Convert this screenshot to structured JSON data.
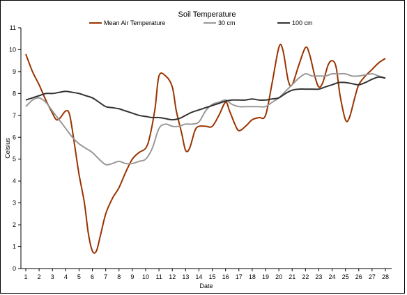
{
  "chart_data": {
    "type": "line",
    "title": "Soil Temperature",
    "xlabel": "Date",
    "ylabel": "Celsius",
    "x": [
      1,
      2,
      3,
      4,
      5,
      6,
      7,
      8,
      9,
      10,
      11,
      12,
      13,
      14,
      15,
      16,
      17,
      18,
      19,
      20,
      21,
      22,
      23,
      24,
      25,
      26,
      27,
      28
    ],
    "xlim": [
      1,
      28
    ],
    "ylim": [
      0,
      11
    ],
    "yticks": [
      0,
      1,
      2,
      3,
      4,
      5,
      6,
      7,
      8,
      9,
      10,
      11
    ],
    "grid": false,
    "legend_position": "top",
    "series": [
      {
        "name": "Mean Air Temperature",
        "color": "#993300",
        "points": [
          [
            1,
            9.8
          ],
          [
            1.5,
            9.0
          ],
          [
            2,
            8.4
          ],
          [
            2.5,
            7.7
          ],
          [
            3,
            7.1
          ],
          [
            3.3,
            6.8
          ],
          [
            3.6,
            6.9
          ],
          [
            4,
            7.2
          ],
          [
            4.3,
            7.0
          ],
          [
            4.7,
            5.5
          ],
          [
            5,
            4.3
          ],
          [
            5.4,
            3.0
          ],
          [
            5.7,
            1.6
          ],
          [
            6,
            0.8
          ],
          [
            6.3,
            0.8
          ],
          [
            6.6,
            1.5
          ],
          [
            7,
            2.5
          ],
          [
            7.5,
            3.2
          ],
          [
            8,
            3.7
          ],
          [
            8.5,
            4.4
          ],
          [
            9,
            5.0
          ],
          [
            9.5,
            5.3
          ],
          [
            10,
            5.5
          ],
          [
            10.3,
            6.0
          ],
          [
            10.7,
            7.3
          ],
          [
            11,
            8.8
          ],
          [
            11.5,
            8.8
          ],
          [
            12,
            8.3
          ],
          [
            12.3,
            7.2
          ],
          [
            12.7,
            6.2
          ],
          [
            13,
            5.4
          ],
          [
            13.3,
            5.5
          ],
          [
            13.7,
            6.3
          ],
          [
            14,
            6.5
          ],
          [
            14.5,
            6.5
          ],
          [
            15,
            6.5
          ],
          [
            15.5,
            7.0
          ],
          [
            16,
            7.6
          ],
          [
            16.3,
            7.2
          ],
          [
            16.7,
            6.6
          ],
          [
            17,
            6.3
          ],
          [
            17.5,
            6.5
          ],
          [
            18,
            6.8
          ],
          [
            18.5,
            6.9
          ],
          [
            19,
            7.0
          ],
          [
            19.5,
            8.5
          ],
          [
            20,
            10.1
          ],
          [
            20.3,
            10.0
          ],
          [
            20.7,
            8.6
          ],
          [
            21,
            8.4
          ],
          [
            21.5,
            9.3
          ],
          [
            22,
            10.1
          ],
          [
            22.3,
            9.8
          ],
          [
            22.7,
            8.8
          ],
          [
            23,
            8.3
          ],
          [
            23.3,
            8.5
          ],
          [
            23.7,
            9.3
          ],
          [
            24,
            9.5
          ],
          [
            24.3,
            9.2
          ],
          [
            24.6,
            7.9
          ],
          [
            25,
            6.8
          ],
          [
            25.3,
            6.9
          ],
          [
            25.7,
            7.8
          ],
          [
            26,
            8.4
          ],
          [
            26.5,
            8.8
          ],
          [
            27,
            9.1
          ],
          [
            27.5,
            9.4
          ],
          [
            28,
            9.6
          ]
        ]
      },
      {
        "name": "30 cm",
        "color": "#999999",
        "points": [
          [
            1,
            7.4
          ],
          [
            1.5,
            7.7
          ],
          [
            2,
            7.8
          ],
          [
            2.5,
            7.6
          ],
          [
            3,
            7.2
          ],
          [
            3.5,
            6.8
          ],
          [
            4,
            6.4
          ],
          [
            4.5,
            6.0
          ],
          [
            5,
            5.7
          ],
          [
            5.5,
            5.5
          ],
          [
            6,
            5.3
          ],
          [
            6.5,
            5.0
          ],
          [
            7,
            4.75
          ],
          [
            7.5,
            4.8
          ],
          [
            8,
            4.9
          ],
          [
            8.5,
            4.8
          ],
          [
            9,
            4.8
          ],
          [
            9.5,
            4.9
          ],
          [
            10,
            5.0
          ],
          [
            10.5,
            5.5
          ],
          [
            11,
            6.4
          ],
          [
            11.5,
            6.6
          ],
          [
            12,
            6.5
          ],
          [
            12.5,
            6.5
          ],
          [
            13,
            6.6
          ],
          [
            13.5,
            6.6
          ],
          [
            14,
            6.7
          ],
          [
            14.5,
            7.2
          ],
          [
            15,
            7.5
          ],
          [
            15.5,
            7.6
          ],
          [
            16,
            7.7
          ],
          [
            16.5,
            7.5
          ],
          [
            17,
            7.4
          ],
          [
            17.5,
            7.4
          ],
          [
            18,
            7.4
          ],
          [
            18.5,
            7.4
          ],
          [
            19,
            7.4
          ],
          [
            19.5,
            7.6
          ],
          [
            20,
            7.8
          ],
          [
            20.5,
            8.1
          ],
          [
            21,
            8.4
          ],
          [
            21.5,
            8.7
          ],
          [
            22,
            8.9
          ],
          [
            22.5,
            8.8
          ],
          [
            23,
            8.8
          ],
          [
            23.5,
            8.8
          ],
          [
            24,
            8.9
          ],
          [
            24.5,
            8.9
          ],
          [
            25,
            8.9
          ],
          [
            25.5,
            8.8
          ],
          [
            26,
            8.8
          ],
          [
            26.5,
            8.85
          ],
          [
            27,
            8.9
          ],
          [
            27.5,
            8.8
          ],
          [
            28,
            8.7
          ]
        ]
      },
      {
        "name": "100 cm",
        "color": "#333333",
        "points": [
          [
            1,
            7.7
          ],
          [
            1.5,
            7.8
          ],
          [
            2,
            7.9
          ],
          [
            2.5,
            8.0
          ],
          [
            3,
            8.0
          ],
          [
            3.5,
            8.05
          ],
          [
            4,
            8.1
          ],
          [
            4.5,
            8.05
          ],
          [
            5,
            8.0
          ],
          [
            5.5,
            7.9
          ],
          [
            6,
            7.8
          ],
          [
            6.5,
            7.6
          ],
          [
            7,
            7.4
          ],
          [
            7.5,
            7.35
          ],
          [
            8,
            7.3
          ],
          [
            8.5,
            7.2
          ],
          [
            9,
            7.1
          ],
          [
            9.5,
            7.0
          ],
          [
            10,
            6.95
          ],
          [
            10.5,
            6.9
          ],
          [
            11,
            6.9
          ],
          [
            11.5,
            6.85
          ],
          [
            12,
            6.8
          ],
          [
            12.5,
            6.85
          ],
          [
            13,
            7.0
          ],
          [
            13.5,
            7.15
          ],
          [
            14,
            7.25
          ],
          [
            14.5,
            7.35
          ],
          [
            15,
            7.45
          ],
          [
            15.5,
            7.55
          ],
          [
            16,
            7.65
          ],
          [
            16.5,
            7.7
          ],
          [
            17,
            7.7
          ],
          [
            17.5,
            7.7
          ],
          [
            18,
            7.75
          ],
          [
            18.5,
            7.7
          ],
          [
            19,
            7.7
          ],
          [
            19.5,
            7.75
          ],
          [
            20,
            7.8
          ],
          [
            20.5,
            8.0
          ],
          [
            21,
            8.15
          ],
          [
            21.5,
            8.2
          ],
          [
            22,
            8.2
          ],
          [
            22.5,
            8.2
          ],
          [
            23,
            8.2
          ],
          [
            23.5,
            8.3
          ],
          [
            24,
            8.4
          ],
          [
            24.5,
            8.5
          ],
          [
            25,
            8.5
          ],
          [
            25.5,
            8.45
          ],
          [
            26,
            8.4
          ],
          [
            26.5,
            8.5
          ],
          [
            27,
            8.65
          ],
          [
            27.5,
            8.75
          ],
          [
            28,
            8.7
          ]
        ]
      }
    ]
  }
}
